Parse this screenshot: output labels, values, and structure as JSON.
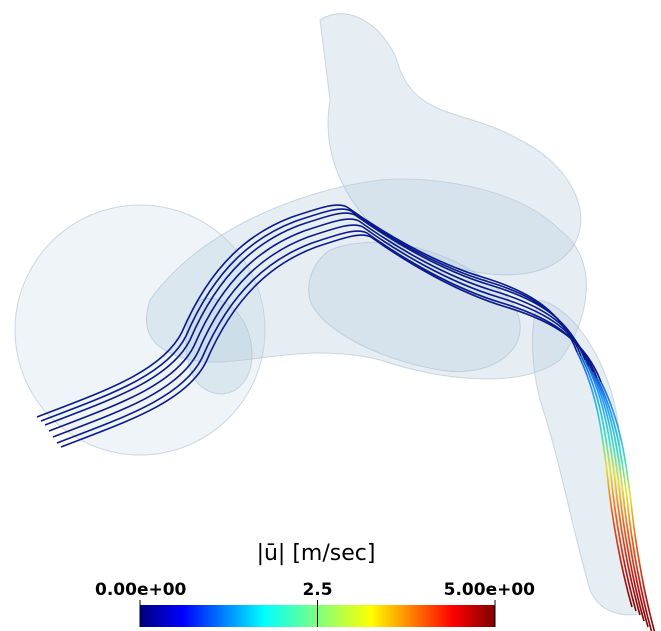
{
  "colorbar": {
    "title": "|ū| [m/sec]",
    "range": [
      0,
      5
    ],
    "ticks": [
      {
        "value": 0,
        "label": "0.00e+00"
      },
      {
        "value": 2.5,
        "label": "2.5"
      },
      {
        "value": 5,
        "label": "5.00e+00"
      }
    ]
  }
}
